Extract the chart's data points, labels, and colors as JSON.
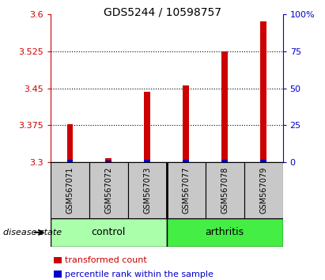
{
  "title": "GDS5244 / 10598757",
  "samples": [
    "GSM567071",
    "GSM567072",
    "GSM567073",
    "GSM567077",
    "GSM567078",
    "GSM567079"
  ],
  "red_values": [
    3.378,
    3.308,
    3.443,
    3.455,
    3.525,
    3.585
  ],
  "blue_pct": [
    2.0,
    1.5,
    2.0,
    2.0,
    2.0,
    2.0
  ],
  "y_min": 3.3,
  "y_max": 3.6,
  "y_ticks": [
    3.3,
    3.375,
    3.45,
    3.525,
    3.6
  ],
  "y_tick_labels": [
    "3.3",
    "3.375",
    "3.45",
    "3.525",
    "3.6"
  ],
  "y2_ticks": [
    0,
    25,
    50,
    75,
    100
  ],
  "y2_tick_labels": [
    "0",
    "25",
    "50",
    "75",
    "100%"
  ],
  "control_color": "#AAFFAA",
  "arthritis_color": "#44EE44",
  "label_bg_color": "#C8C8C8",
  "red_color": "#CC0000",
  "blue_color": "#0000CC",
  "bar_width": 0.15,
  "disease_state_label": "disease state",
  "legend_red": "transformed count",
  "legend_blue": "percentile rank within the sample",
  "title_fontsize": 10,
  "tick_fontsize": 8,
  "label_fontsize": 7,
  "group_fontsize": 9,
  "legend_fontsize": 8
}
